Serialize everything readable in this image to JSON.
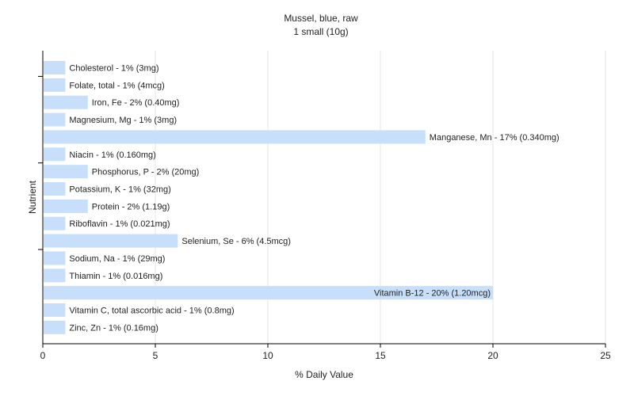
{
  "chart_data": {
    "type": "bar",
    "orientation": "horizontal",
    "title": "Mussel, blue, raw",
    "subtitle": "1 small (10g)",
    "xlabel": "% Daily Value",
    "ylabel": "Nutrient",
    "xlim": [
      0,
      25
    ],
    "xticks": [
      0,
      5,
      10,
      15,
      20,
      25
    ],
    "grid": true,
    "colors": {
      "bar": "#c7dffb",
      "grid": "#e6e6e6",
      "axis": "#000000"
    },
    "categories": [
      "Cholesterol",
      "Folate, total",
      "Iron, Fe",
      "Magnesium, Mg",
      "Manganese, Mn",
      "Niacin",
      "Phosphorus, P",
      "Potassium, K",
      "Protein",
      "Riboflavin",
      "Selenium, Se",
      "Sodium, Na",
      "Thiamin",
      "Vitamin B-12",
      "Vitamin C, total ascorbic acid",
      "Zinc, Zn"
    ],
    "values": [
      1,
      1,
      2,
      1,
      17,
      1,
      2,
      1,
      2,
      1,
      6,
      1,
      1,
      20,
      1,
      1
    ],
    "labels": [
      "Cholesterol - 1% (3mg)",
      "Folate, total - 1% (4mcg)",
      "Iron, Fe - 2% (0.40mg)",
      "Magnesium, Mg - 1% (3mg)",
      "Manganese, Mn - 17% (0.340mg)",
      "Niacin - 1% (0.160mg)",
      "Phosphorus, P - 2% (20mg)",
      "Potassium, K - 1% (32mg)",
      "Protein - 2% (1.19g)",
      "Riboflavin - 1% (0.021mg)",
      "Selenium, Se - 6% (4.5mcg)",
      "Sodium, Na - 1% (29mg)",
      "Thiamin - 1% (0.016mg)",
      "Vitamin B-12 - 20% (1.20mcg)",
      "Vitamin C, total ascorbic acid - 1% (0.8mg)",
      "Zinc, Zn - 1% (0.16mg)"
    ]
  }
}
